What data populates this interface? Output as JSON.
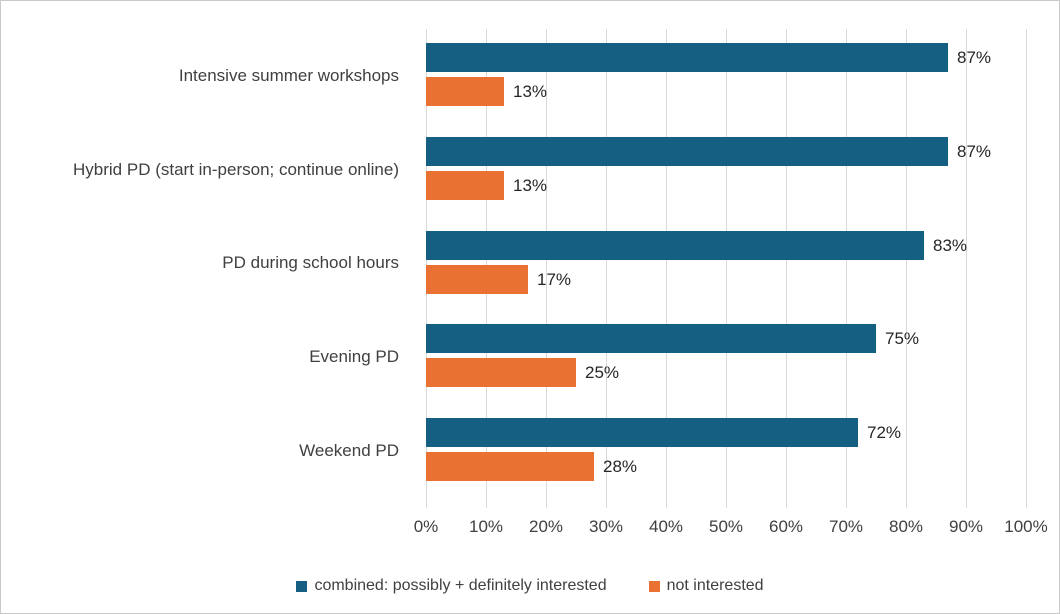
{
  "chart_data": {
    "type": "bar",
    "orientation": "horizontal",
    "title": "",
    "categories": [
      "Intensive summer workshops",
      "Hybrid PD (start in-person; continue online)",
      "PD during school hours",
      "Evening PD",
      "Weekend PD"
    ],
    "series": [
      {
        "name": "combined: possibly + definitely interested",
        "color": "#156082",
        "values": [
          87,
          87,
          83,
          75,
          72
        ],
        "data_labels": [
          "87%",
          "87%",
          "83%",
          "75%",
          "72%"
        ]
      },
      {
        "name": "not interested",
        "color": "#E97132",
        "values": [
          13,
          13,
          17,
          25,
          28
        ],
        "data_labels": [
          "13%",
          "13%",
          "17%",
          "25%",
          "28%"
        ]
      }
    ],
    "x_axis": {
      "min": 0,
      "max": 100,
      "tick_labels": [
        "0%",
        "10%",
        "20%",
        "30%",
        "40%",
        "50%",
        "60%",
        "70%",
        "80%",
        "90%",
        "100%"
      ]
    },
    "grid": true,
    "gridline_color": "#D9D9D9",
    "legend_position": "bottom",
    "data_labels_shown": true
  }
}
